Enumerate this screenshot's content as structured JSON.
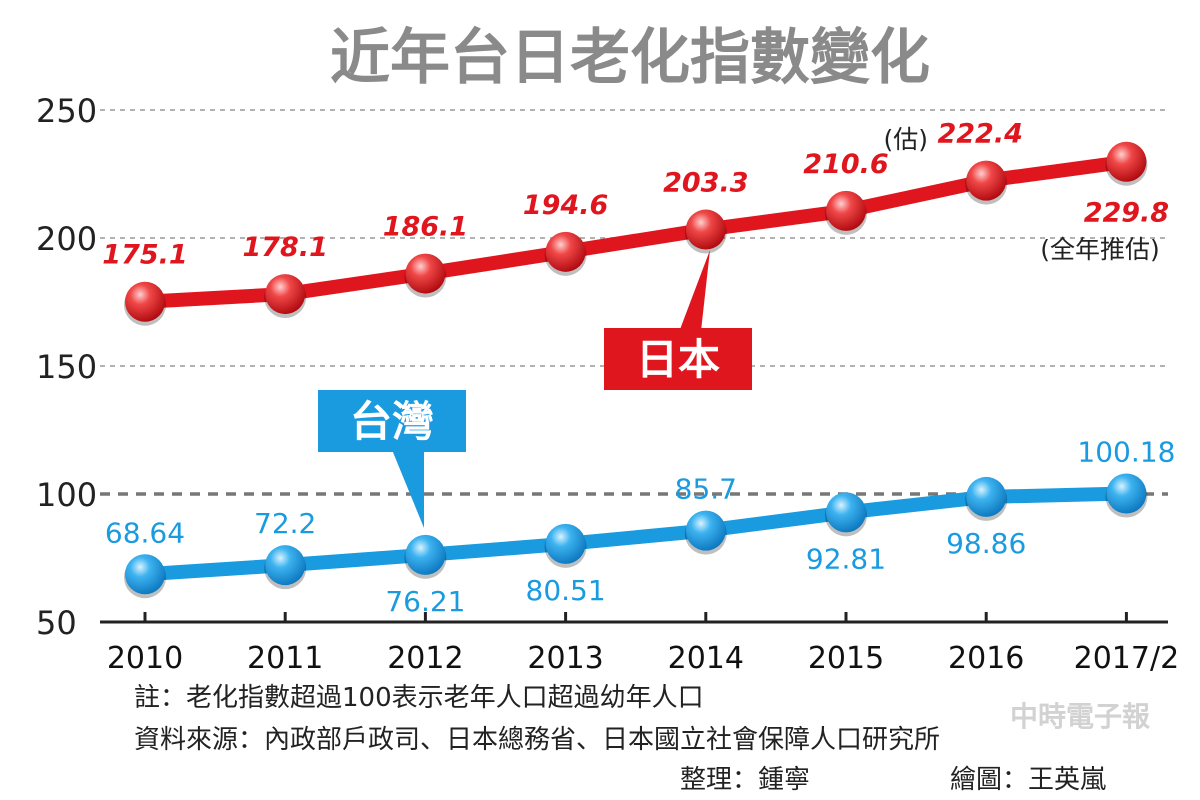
{
  "chart_data": {
    "type": "line",
    "title": "近年台日老化指數變化",
    "categories": [
      "2010",
      "2011",
      "2012",
      "2013",
      "2014",
      "2015",
      "2016",
      "2017/2"
    ],
    "ylim": [
      50,
      250
    ],
    "yticks": [
      "50",
      "100",
      "150",
      "200",
      "250"
    ],
    "grid": "dashed horizontal",
    "reference_line": 100,
    "series": [
      {
        "name": "日本",
        "color": "#e0161e",
        "values": [
          175.1,
          178.1,
          186.1,
          194.6,
          203.3,
          210.6,
          222.4,
          229.8
        ],
        "labels": [
          "175.1",
          "178.1",
          "186.1",
          "194.6",
          "203.3",
          "210.6",
          "222.4",
          "229.8"
        ]
      },
      {
        "name": "台灣",
        "color": "#1a9be0",
        "values": [
          68.64,
          72.2,
          76.21,
          80.51,
          85.7,
          92.81,
          98.86,
          100.18
        ],
        "labels": [
          "68.64",
          "72.2",
          "76.21",
          "80.51",
          "85.7",
          "92.81",
          "98.86",
          "100.18"
        ]
      }
    ],
    "annotations": {
      "estimate_prefix": "(估)",
      "full_year_estimate": "(全年推估)"
    }
  },
  "notes": {
    "note": "註：老化指數超過100表示老年人口超過幼年人口",
    "source": "資料來源：內政部戶政司、日本總務省、日本國立社會保障人口研究所",
    "editor": "整理：鍾寧",
    "artist": "繪圖：王英嵐"
  },
  "watermark": "中時電子報"
}
